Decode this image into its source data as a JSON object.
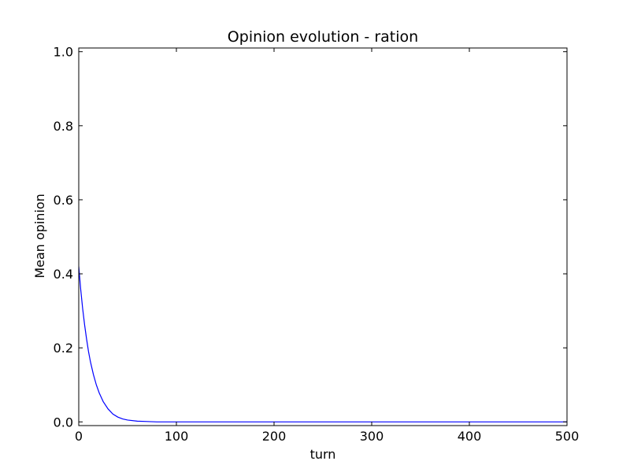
{
  "chart_data": {
    "type": "line",
    "title": "Opinion evolution - ration",
    "xlabel": "turn",
    "ylabel": "Mean opinion",
    "xlim": [
      0,
      500
    ],
    "ylim": [
      -0.01,
      1.01
    ],
    "xticks": [
      0,
      100,
      200,
      300,
      400,
      500
    ],
    "xtick_labels": [
      "0",
      "100",
      "200",
      "300",
      "400",
      "500"
    ],
    "yticks": [
      0.0,
      0.2,
      0.4,
      0.6,
      0.8,
      1.0
    ],
    "ytick_labels": [
      "0.0",
      "0.2",
      "0.4",
      "0.6",
      "0.8",
      "1.0"
    ],
    "grid": false,
    "series": [
      {
        "color": "#0000ff",
        "x": [
          0,
          2,
          4,
          6,
          8,
          10,
          12,
          15,
          18,
          21,
          25,
          30,
          35,
          40,
          45,
          50,
          60,
          70,
          80,
          100,
          150,
          200,
          300,
          400,
          500
        ],
        "y": [
          0.42,
          0.358,
          0.306,
          0.262,
          0.224,
          0.19,
          0.162,
          0.128,
          0.1,
          0.078,
          0.055,
          0.035,
          0.021,
          0.013,
          0.008,
          0.005,
          0.002,
          0.001,
          0.0,
          0.0,
          0.0,
          0.0,
          0.0,
          0.0,
          0.0
        ]
      }
    ]
  }
}
